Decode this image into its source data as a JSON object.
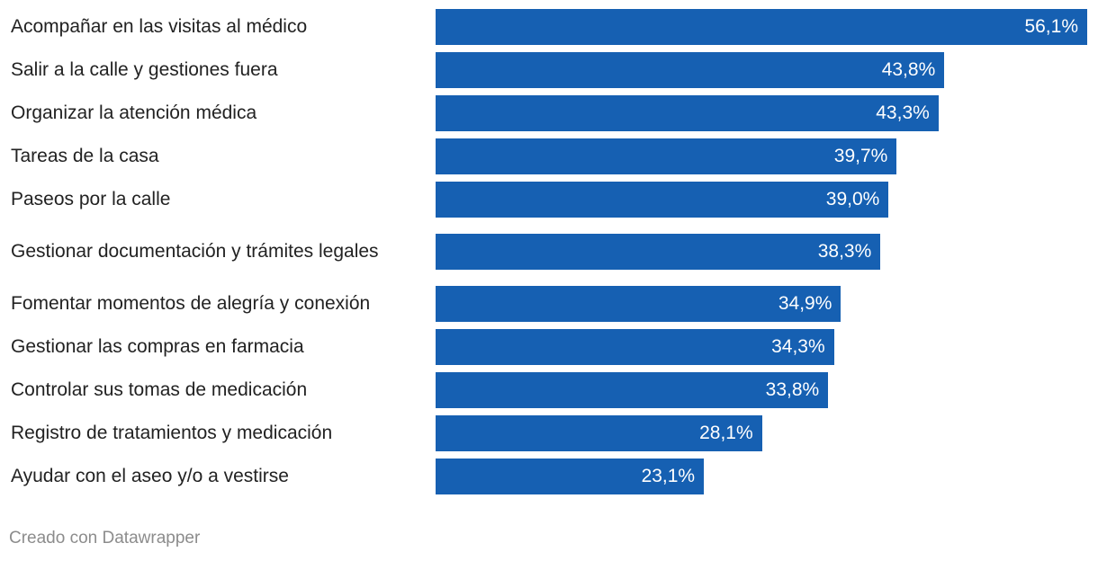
{
  "colors": {
    "bar": "#1660b2",
    "label": "#222222",
    "value": "#ffffff",
    "footer": "#8c8c8c"
  },
  "chart_data": {
    "type": "bar",
    "orientation": "horizontal",
    "title": "",
    "xlabel": "",
    "ylabel": "",
    "xlim": [
      0,
      56.1
    ],
    "unit": "%",
    "categories": [
      "Acompañar en las visitas al médico",
      "Salir a la calle y gestiones fuera",
      "Organizar la atención médica",
      "Tareas de la casa",
      "Paseos por la calle",
      "Gestionar documentación y trámites legales",
      "Fomentar momentos de alegría y conexión",
      "Gestionar las compras en farmacia",
      "Controlar sus tomas de medicación",
      "Registro de tratamientos y medicación",
      "Ayudar con el aseo y/o a vestirse"
    ],
    "values": [
      56.1,
      43.8,
      43.3,
      39.7,
      39.0,
      38.3,
      34.9,
      34.3,
      33.8,
      28.1,
      23.1
    ],
    "value_labels": [
      "56,1%",
      "43,8%",
      "43,3%",
      "39,7%",
      "39,0%",
      "38,3%",
      "34,9%",
      "34,3%",
      "33,8%",
      "28,1%",
      "23,1%"
    ]
  },
  "footer": {
    "credit": "Creado con Datawrapper"
  }
}
